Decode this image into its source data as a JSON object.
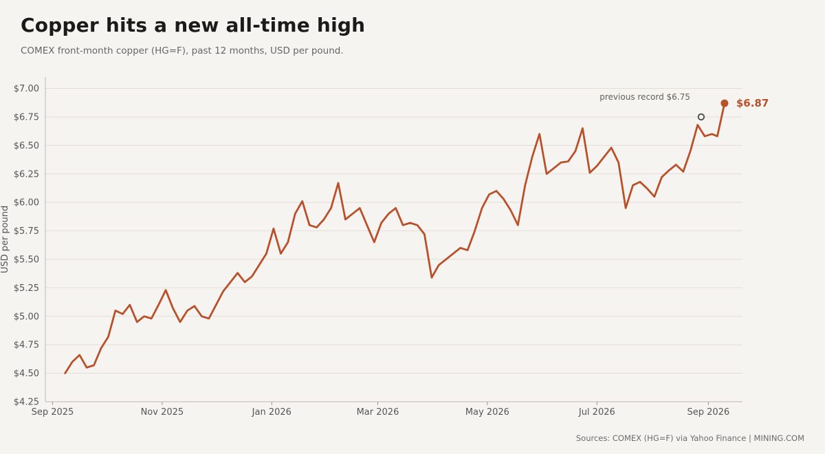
{
  "title": "Copper hits a new all-time high",
  "subtitle": "COMEX front-month copper (HG=F), past 12 months, USD per pound.",
  "source": "Sources: COMEX (HG=F) via Yahoo Finance  |  MINING.COM",
  "colors": {
    "line": "#b9502a",
    "grid": "#e3ddd4",
    "text": "#555555",
    "record_marker": "#555555"
  },
  "chart_data": {
    "type": "line",
    "title": "Copper hits a new all-time high",
    "ylabel": "USD per pound",
    "ylim": [
      4.25,
      7.1
    ],
    "xlim": [
      "2025-08-28",
      "2026-09-20"
    ],
    "yticks": [
      4.25,
      4.5,
      4.75,
      5.0,
      5.25,
      5.5,
      5.75,
      6.0,
      6.25,
      6.5,
      6.75,
      7.0
    ],
    "ytick_labels": [
      "$4.25",
      "$4.50",
      "$4.75",
      "$5.00",
      "$5.25",
      "$5.50",
      "$5.75",
      "$6.00",
      "$6.25",
      "$6.50",
      "$6.75",
      "$7.00"
    ],
    "xticks": [
      "2025-09-01",
      "2025-11-01",
      "2026-01-01",
      "2026-03-01",
      "2026-05-01",
      "2026-07-01",
      "2026-09-01"
    ],
    "xtick_labels": [
      "Sep 2025",
      "Nov 2025",
      "Jan 2026",
      "Mar 2026",
      "May 2026",
      "Jul 2026",
      "Sep 2026"
    ],
    "grid": "horizontal",
    "series": [
      {
        "x": [
          "2025-09-08",
          "2025-09-12",
          "2025-09-16",
          "2025-09-20",
          "2025-09-24",
          "2025-09-28",
          "2025-10-02",
          "2025-10-06",
          "2025-10-10",
          "2025-10-14",
          "2025-10-18",
          "2025-10-22",
          "2025-10-26",
          "2025-10-30",
          "2025-11-03",
          "2025-11-07",
          "2025-11-11",
          "2025-11-15",
          "2025-11-19",
          "2025-11-23",
          "2025-11-27",
          "2025-12-01",
          "2025-12-05",
          "2025-12-09",
          "2025-12-13",
          "2025-12-17",
          "2025-12-21",
          "2025-12-25",
          "2025-12-29",
          "2026-01-02",
          "2026-01-06",
          "2026-01-10",
          "2026-01-14",
          "2026-01-18",
          "2026-01-22",
          "2026-01-26",
          "2026-01-30",
          "2026-02-03",
          "2026-02-07",
          "2026-02-11",
          "2026-02-15",
          "2026-02-19",
          "2026-02-23",
          "2026-02-27",
          "2026-03-03",
          "2026-03-07",
          "2026-03-11",
          "2026-03-15",
          "2026-03-19",
          "2026-03-23",
          "2026-03-27",
          "2026-03-31",
          "2026-04-04",
          "2026-04-08",
          "2026-04-12",
          "2026-04-16",
          "2026-04-20",
          "2026-04-24",
          "2026-04-28",
          "2026-05-02",
          "2026-05-06",
          "2026-05-10",
          "2026-05-14",
          "2026-05-18",
          "2026-05-22",
          "2026-05-26",
          "2026-05-30",
          "2026-06-03",
          "2026-06-07",
          "2026-06-11",
          "2026-06-15",
          "2026-06-19",
          "2026-06-23",
          "2026-06-27",
          "2026-07-01",
          "2026-07-05",
          "2026-07-09",
          "2026-07-13",
          "2026-07-17",
          "2026-07-21",
          "2026-07-25",
          "2026-07-29",
          "2026-08-02",
          "2026-08-06",
          "2026-08-10",
          "2026-08-14",
          "2026-08-18",
          "2026-08-22",
          "2026-08-26",
          "2026-08-30",
          "2026-09-03",
          "2026-09-06",
          "2026-09-10"
        ],
        "values": [
          4.5,
          4.6,
          4.66,
          4.55,
          4.57,
          4.72,
          4.82,
          5.05,
          5.02,
          5.1,
          4.95,
          5.0,
          4.98,
          5.1,
          5.23,
          5.07,
          4.95,
          5.05,
          5.09,
          5.0,
          4.98,
          5.1,
          5.22,
          5.3,
          5.38,
          5.3,
          5.35,
          5.45,
          5.55,
          5.77,
          5.55,
          5.65,
          5.9,
          6.01,
          5.8,
          5.78,
          5.85,
          5.95,
          6.17,
          5.85,
          5.9,
          5.95,
          5.8,
          5.65,
          5.82,
          5.9,
          5.95,
          5.8,
          5.82,
          5.8,
          5.72,
          5.34,
          5.45,
          5.5,
          5.55,
          5.6,
          5.58,
          5.75,
          5.95,
          6.07,
          6.1,
          6.03,
          5.93,
          5.8,
          6.15,
          6.4,
          6.6,
          6.25,
          6.3,
          6.35,
          6.36,
          6.45,
          6.65,
          6.26,
          6.32,
          6.4,
          6.48,
          6.35,
          5.95,
          6.15,
          6.18,
          6.12,
          6.05,
          6.22,
          6.28,
          6.33,
          6.27,
          6.45,
          6.68,
          6.58,
          6.6,
          6.58,
          6.87
        ]
      }
    ],
    "annotations": [
      {
        "date": "2026-08-28",
        "value": 6.75,
        "label": "previous record $6.75"
      },
      {
        "date": "2026-09-10",
        "value": 6.87,
        "label": "$6.87"
      }
    ]
  }
}
